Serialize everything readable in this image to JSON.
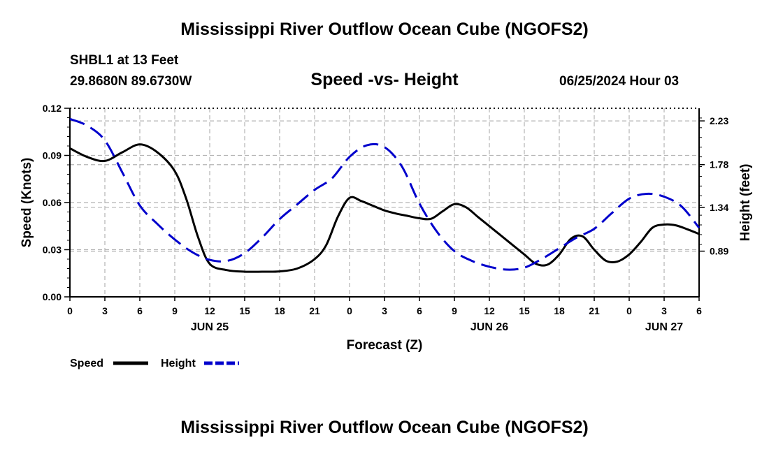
{
  "page": {
    "title": "Mississippi River Outflow Ocean Cube (NGOFS2)",
    "title_repeat": "Mississippi River Outflow Ocean Cube (NGOFS2)",
    "station": "SHBL1 at 13 Feet",
    "coordinates": "29.8680N  89.6730W",
    "subtitle": "Speed -vs- Height",
    "datetime": "06/25/2024 Hour 03"
  },
  "chart_data": {
    "type": "line",
    "title": "Speed -vs- Height",
    "xlabel": "Forecast (Z)",
    "ylabel": "Speed (Knots)",
    "y2label": "Height (feet)",
    "xlim": [
      0,
      54
    ],
    "ylim": [
      0,
      0.12
    ],
    "y2lim": [
      0.42,
      2.36
    ],
    "grid": true,
    "x_ticks": [
      0,
      3,
      6,
      9,
      12,
      15,
      18,
      21,
      24,
      27,
      30,
      33,
      36,
      39,
      42,
      45,
      48,
      51,
      54
    ],
    "x_tick_labels": [
      "0",
      "3",
      "6",
      "9",
      "12",
      "15",
      "18",
      "21",
      "0",
      "3",
      "6",
      "9",
      "12",
      "15",
      "18",
      "21",
      "0",
      "3",
      "6"
    ],
    "date_labels": [
      {
        "x": 12,
        "label": "JUN 25"
      },
      {
        "x": 36,
        "label": "JUN 26"
      },
      {
        "x": 51,
        "label": "JUN 27"
      }
    ],
    "y_ticks": [
      0,
      0.03,
      0.06,
      0.09,
      0.12
    ],
    "y_tick_labels": [
      "0.00",
      "0.03",
      "0.06",
      "0.09",
      "0.12"
    ],
    "y2_ticks": [
      0.89,
      1.34,
      1.78,
      2.23
    ],
    "y2_tick_labels": [
      "0.89",
      "1.34",
      "1.78",
      "2.23"
    ],
    "legend": [
      {
        "label": "Speed",
        "color": "#000000",
        "style": "solid"
      },
      {
        "label": "Height",
        "color": "#0000cc",
        "style": "dashed"
      }
    ],
    "series": [
      {
        "name": "Speed",
        "axis": "left",
        "color": "#000000",
        "style": "solid",
        "x": [
          0,
          1.5,
          3,
          4.5,
          6,
          7.5,
          9,
          10,
          11,
          12,
          13.5,
          15,
          16.5,
          18,
          19.5,
          21,
          22,
          23,
          24,
          25,
          26,
          27,
          28,
          29,
          30,
          31,
          32,
          33,
          34,
          35,
          36,
          37,
          38,
          39,
          40,
          41,
          42,
          43,
          44,
          45,
          46,
          47,
          48,
          49,
          50,
          51,
          52,
          53,
          54
        ],
        "values": [
          0.0945,
          0.089,
          0.0865,
          0.092,
          0.097,
          0.092,
          0.08,
          0.062,
          0.038,
          0.021,
          0.017,
          0.016,
          0.016,
          0.0162,
          0.018,
          0.024,
          0.033,
          0.051,
          0.063,
          0.061,
          0.058,
          0.055,
          0.053,
          0.0515,
          0.05,
          0.0497,
          0.0545,
          0.059,
          0.057,
          0.051,
          0.045,
          0.039,
          0.033,
          0.027,
          0.021,
          0.0205,
          0.027,
          0.037,
          0.0385,
          0.03,
          0.023,
          0.0225,
          0.027,
          0.035,
          0.044,
          0.046,
          0.0455,
          0.043,
          0.04
        ]
      },
      {
        "name": "Height",
        "axis": "right",
        "color": "#0000cc",
        "style": "dashed",
        "x": [
          0,
          1.5,
          3,
          4.5,
          6,
          7.5,
          9,
          10.5,
          12,
          13.5,
          15,
          16.5,
          18,
          19.5,
          21,
          22.5,
          24,
          25.5,
          27,
          28.5,
          30,
          31.5,
          33,
          34.5,
          36,
          37.5,
          39,
          40.5,
          42,
          43.5,
          45,
          46.5,
          48,
          49.5,
          51,
          52.5,
          54
        ],
        "values": [
          2.25,
          2.18,
          2.03,
          1.7,
          1.36,
          1.17,
          1.01,
          0.88,
          0.8,
          0.79,
          0.87,
          1.03,
          1.22,
          1.37,
          1.52,
          1.64,
          1.86,
          1.98,
          1.96,
          1.76,
          1.38,
          1.09,
          0.89,
          0.79,
          0.73,
          0.7,
          0.72,
          0.81,
          0.92,
          1.03,
          1.12,
          1.28,
          1.43,
          1.48,
          1.45,
          1.35,
          1.13
        ]
      }
    ]
  }
}
